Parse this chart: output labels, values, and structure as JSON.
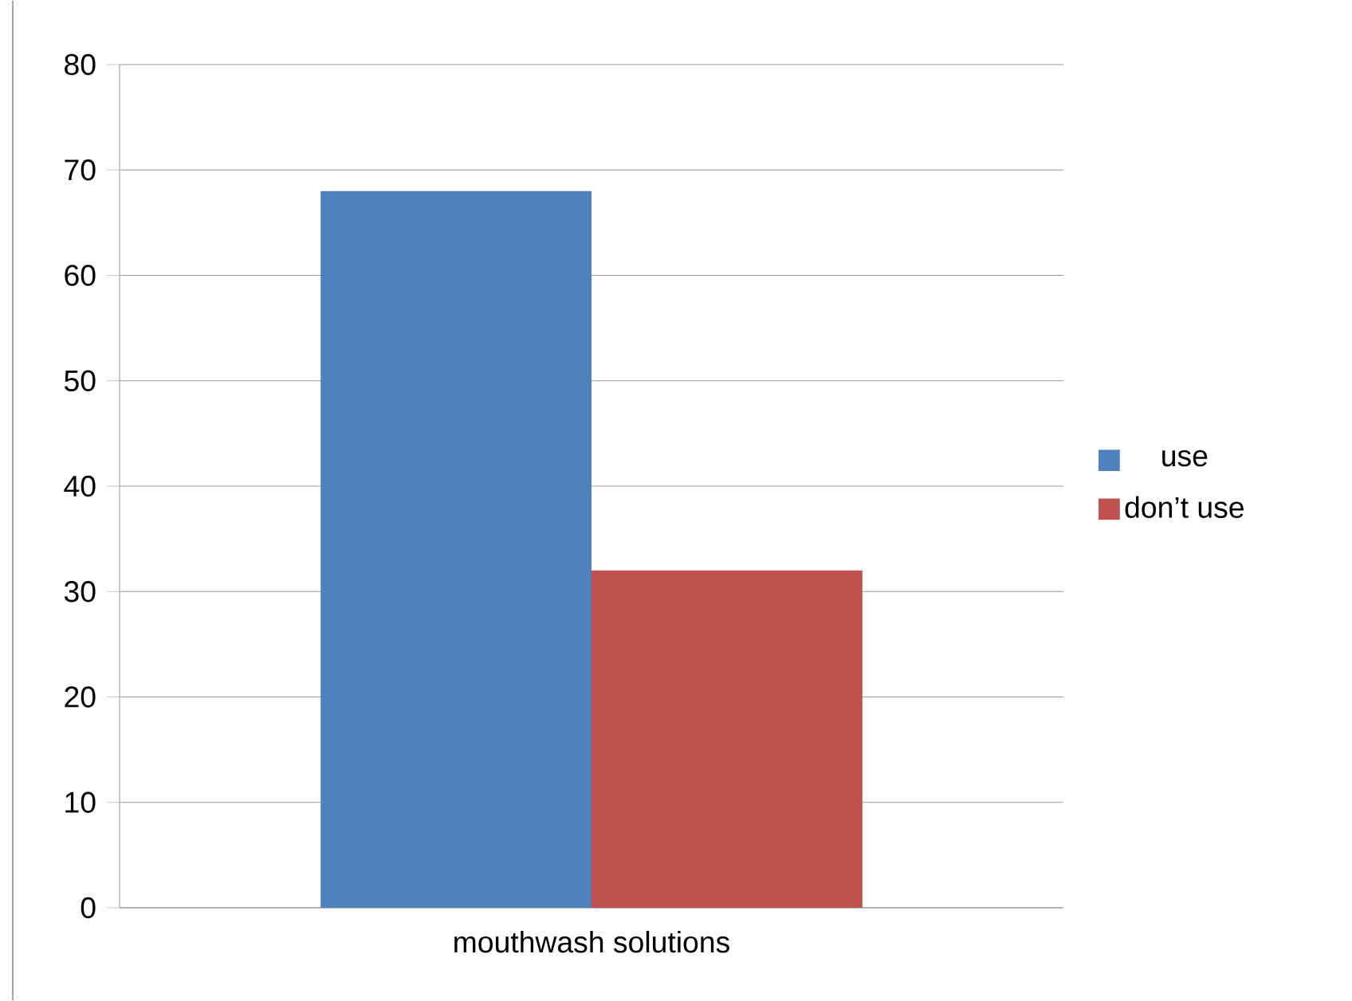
{
  "chart_data": {
    "type": "bar",
    "categories": [
      "mouthwash solutions"
    ],
    "series": [
      {
        "name": "use",
        "color": "#4f81bd",
        "values": [
          68
        ]
      },
      {
        "name": "don’t use",
        "color": "#c0504d",
        "values": [
          32
        ]
      }
    ],
    "ylim": [
      0,
      80
    ],
    "yticks": [
      0,
      10,
      20,
      30,
      40,
      50,
      60,
      70,
      80
    ],
    "grid": "y",
    "legend": "right"
  }
}
